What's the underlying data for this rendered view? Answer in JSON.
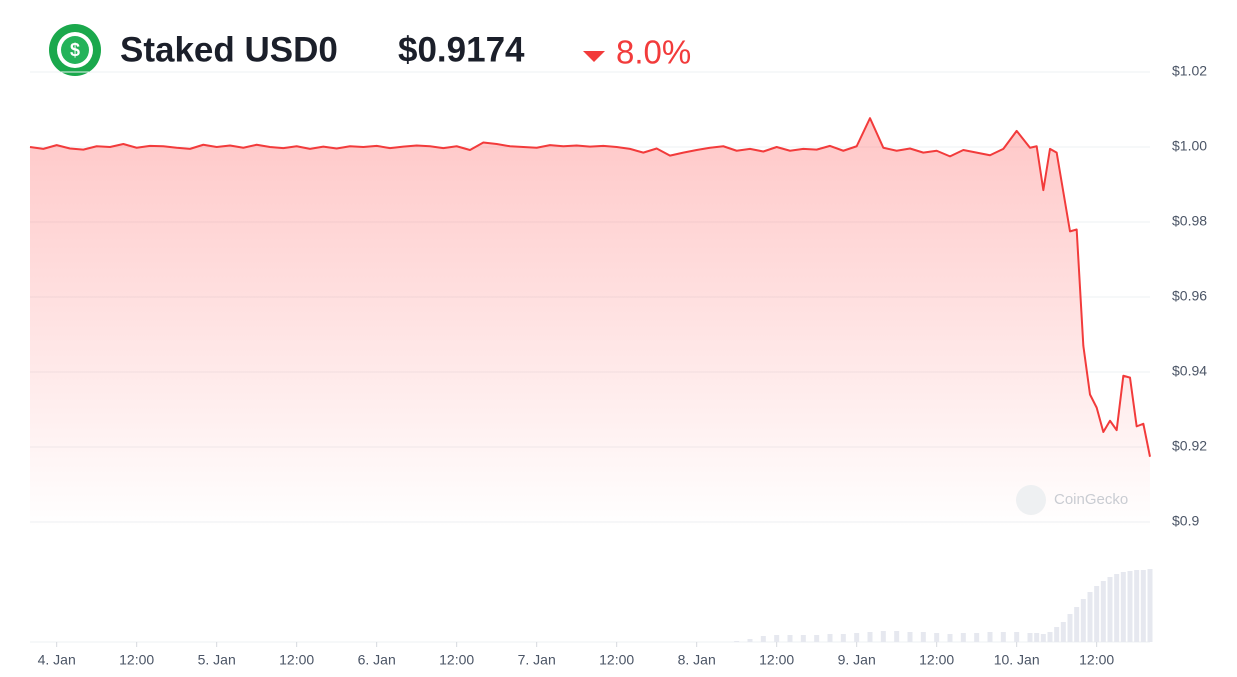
{
  "chart_data": {
    "type": "line",
    "title": "Staked USD0",
    "price": "$0.9174",
    "change": "8.0%",
    "watermark": "CoinGecko",
    "color": "#f23b3b",
    "volume_color": "#e6e8ef",
    "grid": true,
    "x": [
      -4,
      -2,
      0,
      2,
      4,
      6,
      8,
      10,
      12,
      14,
      16,
      18,
      20,
      22,
      24,
      26,
      28,
      30,
      32,
      34,
      36,
      38,
      40,
      42,
      44,
      46,
      48,
      50,
      52,
      54,
      56,
      58,
      60,
      62,
      64,
      66,
      68,
      70,
      72,
      74,
      76,
      78,
      80,
      82,
      84,
      86,
      88,
      90,
      92,
      94,
      96,
      98,
      100,
      102,
      104,
      106,
      108,
      110,
      112,
      114,
      116,
      118,
      120,
      122,
      124,
      126,
      128,
      130,
      132,
      134,
      136,
      138,
      140,
      142,
      144,
      146,
      147,
      148,
      149,
      150,
      151,
      152,
      153,
      154,
      155,
      156,
      157,
      158,
      159,
      160,
      161,
      162,
      163,
      164
    ],
    "values": [
      1.0,
      0.9995,
      1.0005,
      0.9996,
      0.9993,
      1.0002,
      1.0,
      1.0008,
      0.9998,
      1.0003,
      1.0002,
      0.9998,
      0.9995,
      1.0006,
      1.0,
      1.0004,
      0.9998,
      1.0006,
      1.0,
      0.9997,
      1.0002,
      0.9995,
      1.0001,
      0.9996,
      1.0002,
      1.0,
      1.0003,
      0.9997,
      1.0001,
      1.0004,
      1.0002,
      0.9997,
      1.0002,
      0.9992,
      1.0012,
      1.0008,
      1.0002,
      1.0,
      0.9998,
      1.0005,
      1.0002,
      1.0004,
      1.0001,
      1.0003,
      1.0,
      0.9995,
      0.9985,
      0.9996,
      0.9977,
      0.9985,
      0.9992,
      0.9998,
      1.0002,
      0.999,
      0.9995,
      0.9988,
      1.0,
      0.999,
      0.9995,
      0.9993,
      1.0003,
      0.999,
      1.0002,
      1.0077,
      0.9998,
      0.999,
      0.9996,
      0.9985,
      0.999,
      0.9975,
      0.9992,
      0.9985,
      0.9978,
      0.9995,
      1.0043,
      0.9998,
      1.0002,
      0.9885,
      0.9995,
      0.9985,
      0.988,
      0.9775,
      0.978,
      0.947,
      0.934,
      0.9305,
      0.924,
      0.927,
      0.9245,
      0.939,
      0.9385,
      0.9255,
      0.9262,
      0.9174
    ],
    "volume": [
      0,
      0,
      0,
      0,
      0,
      0,
      0,
      0,
      0,
      0,
      0,
      0,
      0,
      0,
      0,
      0,
      0,
      0,
      0,
      0,
      0,
      0,
      0,
      0,
      0,
      0,
      0,
      0,
      0,
      0,
      0,
      0,
      0,
      0,
      0,
      0,
      0,
      0,
      0,
      0,
      0,
      0,
      0,
      0,
      0,
      0,
      0,
      0,
      0,
      0,
      0,
      0,
      0,
      1,
      3,
      6,
      7,
      7,
      7,
      7,
      8,
      8,
      9,
      10,
      11,
      11,
      10,
      10,
      9,
      8,
      9,
      9,
      10,
      10,
      10,
      9,
      9,
      8,
      10,
      15,
      20,
      28,
      35,
      43,
      50,
      56,
      61,
      65,
      68,
      70,
      71,
      72,
      72,
      73
    ],
    "volume_ylim": [
      0,
      77
    ],
    "xlim": [
      -4,
      164
    ],
    "ylim": [
      0.9,
      1.02
    ],
    "xticks": [
      {
        "value": 0,
        "label": "4. Jan"
      },
      {
        "value": 12,
        "label": "12:00"
      },
      {
        "value": 24,
        "label": "5. Jan"
      },
      {
        "value": 36,
        "label": "12:00"
      },
      {
        "value": 48,
        "label": "6. Jan"
      },
      {
        "value": 60,
        "label": "12:00"
      },
      {
        "value": 72,
        "label": "7. Jan"
      },
      {
        "value": 84,
        "label": "12:00"
      },
      {
        "value": 96,
        "label": "8. Jan"
      },
      {
        "value": 108,
        "label": "12:00"
      },
      {
        "value": 120,
        "label": "9. Jan"
      },
      {
        "value": 132,
        "label": "12:00"
      },
      {
        "value": 144,
        "label": "10. Jan"
      },
      {
        "value": 156,
        "label": "12:00"
      }
    ],
    "yticks": [
      {
        "value": 1.02,
        "label": "$1.02"
      },
      {
        "value": 1.0,
        "label": "$1.00"
      },
      {
        "value": 0.98,
        "label": "$0.98"
      },
      {
        "value": 0.96,
        "label": "$0.96"
      },
      {
        "value": 0.94,
        "label": "$0.94"
      },
      {
        "value": 0.92,
        "label": "$0.92"
      },
      {
        "value": 0.9,
        "label": "$0.9"
      }
    ]
  }
}
